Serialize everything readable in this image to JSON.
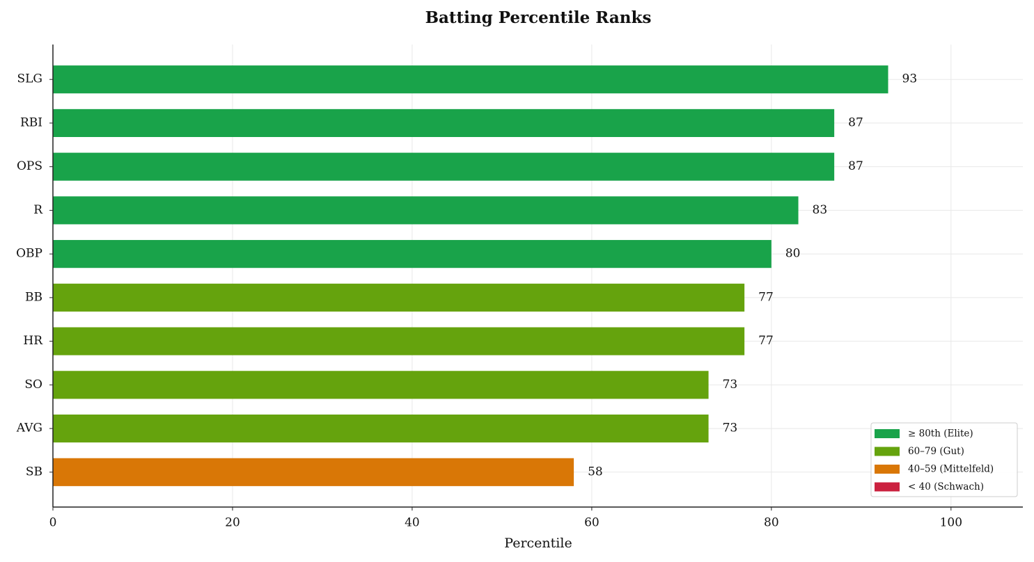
{
  "chart_data": {
    "type": "barh",
    "title": "Batting Percentile Ranks",
    "xlabel": "Percentile",
    "categories": [
      "SLG",
      "RBI",
      "OPS",
      "R",
      "OBP",
      "BB",
      "HR",
      "SO",
      "AVG",
      "SB"
    ],
    "values": [
      93,
      87,
      87,
      83,
      80,
      77,
      77,
      73,
      73,
      58
    ],
    "colors": [
      "#19a34a",
      "#19a34a",
      "#19a34a",
      "#19a34a",
      "#19a34a",
      "#65a30d",
      "#65a30d",
      "#65a30d",
      "#65a30d",
      "#d97706"
    ],
    "xlim": [
      0,
      108
    ],
    "xticks": [
      0,
      20,
      40,
      60,
      80,
      100
    ],
    "grid": true,
    "legend_position": "lower right",
    "legend": [
      {
        "label": "≥ 80th (Elite)",
        "color": "#19a34a"
      },
      {
        "label": "60–79 (Gut)",
        "color": "#65a30d"
      },
      {
        "label": "40–59 (Mittelfeld)",
        "color": "#d97706"
      },
      {
        "label": "< 40 (Schwach)",
        "color": "#cb213f"
      }
    ]
  }
}
